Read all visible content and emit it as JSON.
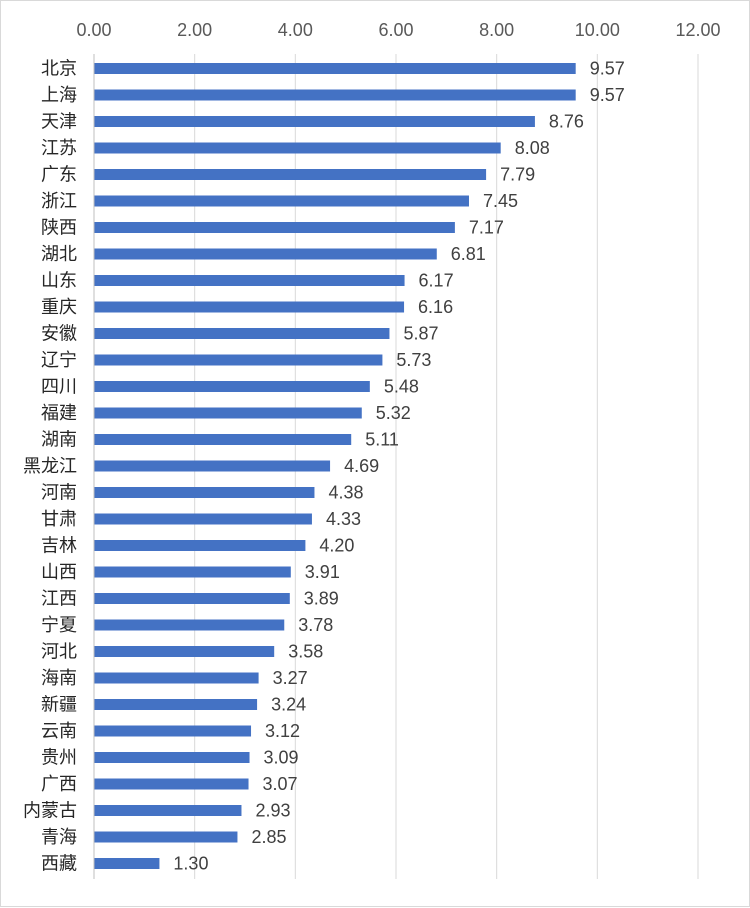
{
  "chart_data": {
    "type": "bar",
    "orientation": "horizontal",
    "title": "",
    "xlabel": "",
    "ylabel": "",
    "xlim": [
      0,
      12
    ],
    "x_ticks": [
      "0.00",
      "2.00",
      "4.00",
      "6.00",
      "8.00",
      "10.00",
      "12.00"
    ],
    "x_axis_position": "top",
    "grid": "vertical",
    "legend": "none",
    "bar_color": "#4472C4",
    "categories": [
      "北京",
      "上海",
      "天津",
      "江苏",
      "广东",
      "浙江",
      "陕西",
      "湖北",
      "山东",
      "重庆",
      "安徽",
      "辽宁",
      "四川",
      "福建",
      "湖南",
      "黑龙江",
      "河南",
      "甘肃",
      "吉林",
      "山西",
      "江西",
      "宁夏",
      "河北",
      "海南",
      "新疆",
      "云南",
      "贵州",
      "广西",
      "内蒙古",
      "青海",
      "西藏"
    ],
    "values": [
      9.57,
      9.57,
      8.76,
      8.08,
      7.79,
      7.45,
      7.17,
      6.81,
      6.17,
      6.16,
      5.87,
      5.73,
      5.48,
      5.32,
      5.11,
      4.69,
      4.38,
      4.33,
      4.2,
      3.91,
      3.89,
      3.78,
      3.58,
      3.27,
      3.24,
      3.12,
      3.09,
      3.07,
      2.93,
      2.85,
      1.3
    ],
    "value_labels": [
      "9.57",
      "9.57",
      "8.76",
      "8.08",
      "7.79",
      "7.45",
      "7.17",
      "6.81",
      "6.17",
      "6.16",
      "5.87",
      "5.73",
      "5.48",
      "5.32",
      "5.11",
      "4.69",
      "4.38",
      "4.33",
      "4.20",
      "3.91",
      "3.89",
      "3.78",
      "3.58",
      "3.27",
      "3.24",
      "3.12",
      "3.09",
      "3.07",
      "2.93",
      "2.85",
      "1.30"
    ]
  }
}
